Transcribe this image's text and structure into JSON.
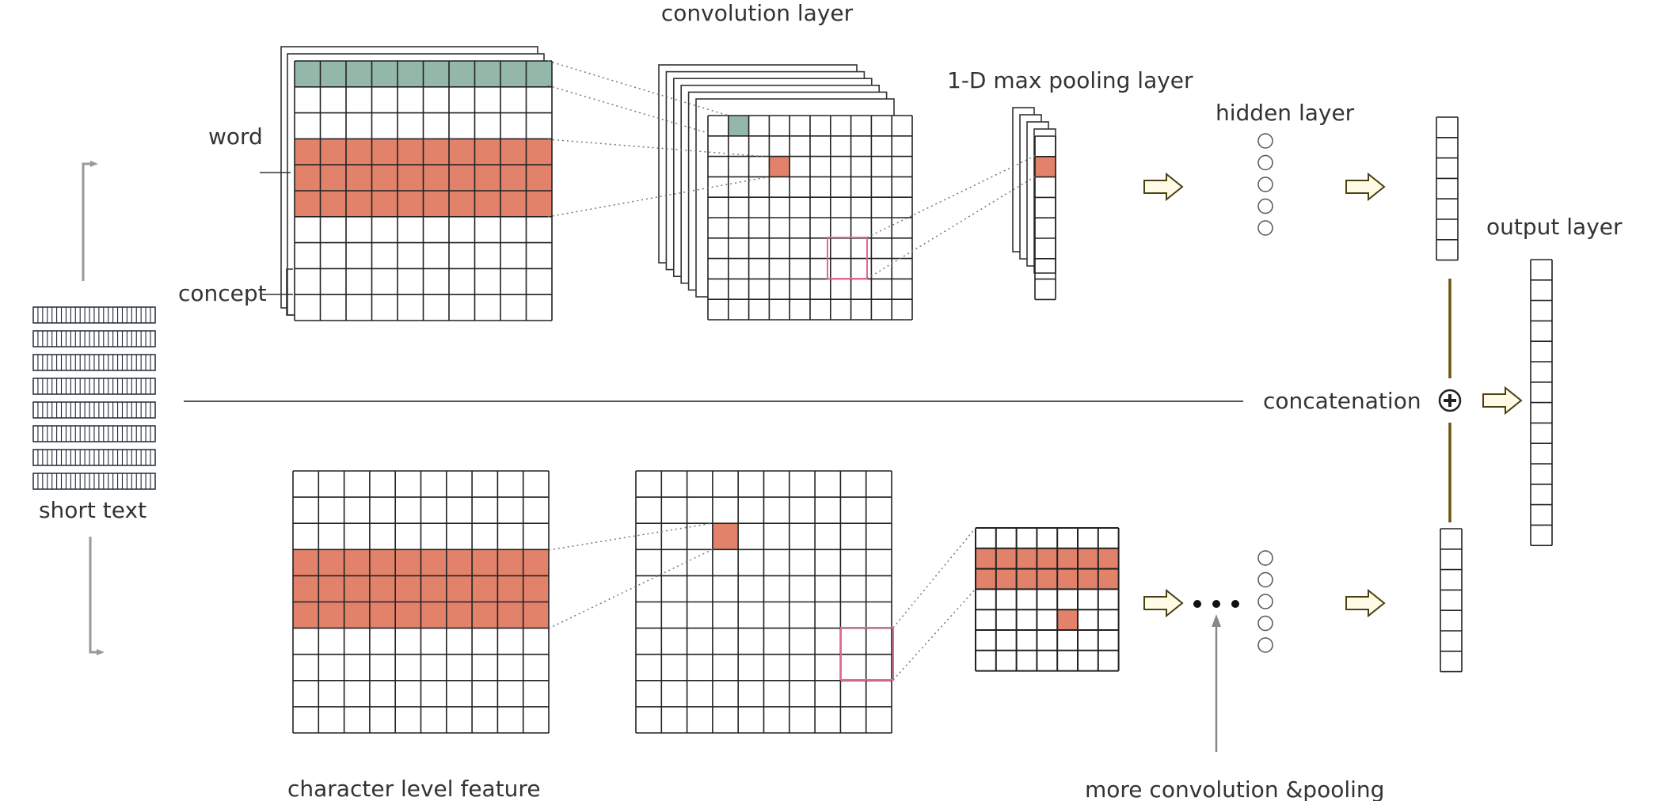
{
  "labels": {
    "convolution_layer": "convolution layer",
    "max_pooling_layer": "1-D max pooling layer",
    "hidden_layer": "hidden layer",
    "output_layer": "output layer",
    "word": "word",
    "concept": "concept",
    "concatenation": "concatenation",
    "short_text": "short text",
    "character_level_feature": "character level feature",
    "more_conv_pooling": "more convolution &pooling"
  },
  "colors": {
    "teal": "#93b8aa",
    "salmon": "#e2826b",
    "pink": "#e8649a",
    "arrow_fill": "#fffbe6",
    "arrow_stroke": "#4a4010",
    "concat_line": "#6b5410",
    "grid_line": "#222222"
  }
}
